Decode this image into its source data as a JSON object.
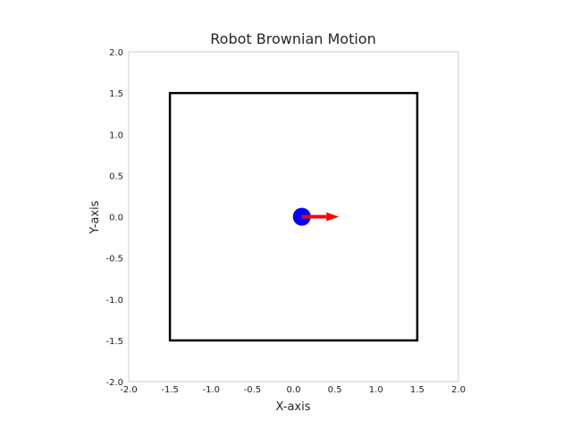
{
  "chart_data": {
    "type": "scatter",
    "title": "Robot Brownian Motion",
    "xlabel": "X-axis",
    "ylabel": "Y-axis",
    "xlim": [
      -2.0,
      2.0
    ],
    "ylim": [
      -2.0,
      2.0
    ],
    "xticks": [
      "-2.0",
      "-1.5",
      "-1.0",
      "-0.5",
      "0.0",
      "0.5",
      "1.0",
      "1.5",
      "2.0"
    ],
    "yticks": [
      "2.0",
      "1.5",
      "1.0",
      "0.5",
      "0.0",
      "-0.5",
      "-1.0",
      "-1.5",
      "-2.0"
    ],
    "grid": false,
    "boundary": {
      "x_min": -1.5,
      "x_max": 1.5,
      "y_min": -1.5,
      "y_max": 1.5,
      "color": "#000000"
    },
    "robot": {
      "x": 0.1,
      "y": 0.0,
      "color": "#0000ff"
    },
    "heading_arrow": {
      "x_start": 0.1,
      "y_start": 0.0,
      "x_end": 0.55,
      "y_end": 0.0,
      "color": "#ff0000"
    }
  }
}
